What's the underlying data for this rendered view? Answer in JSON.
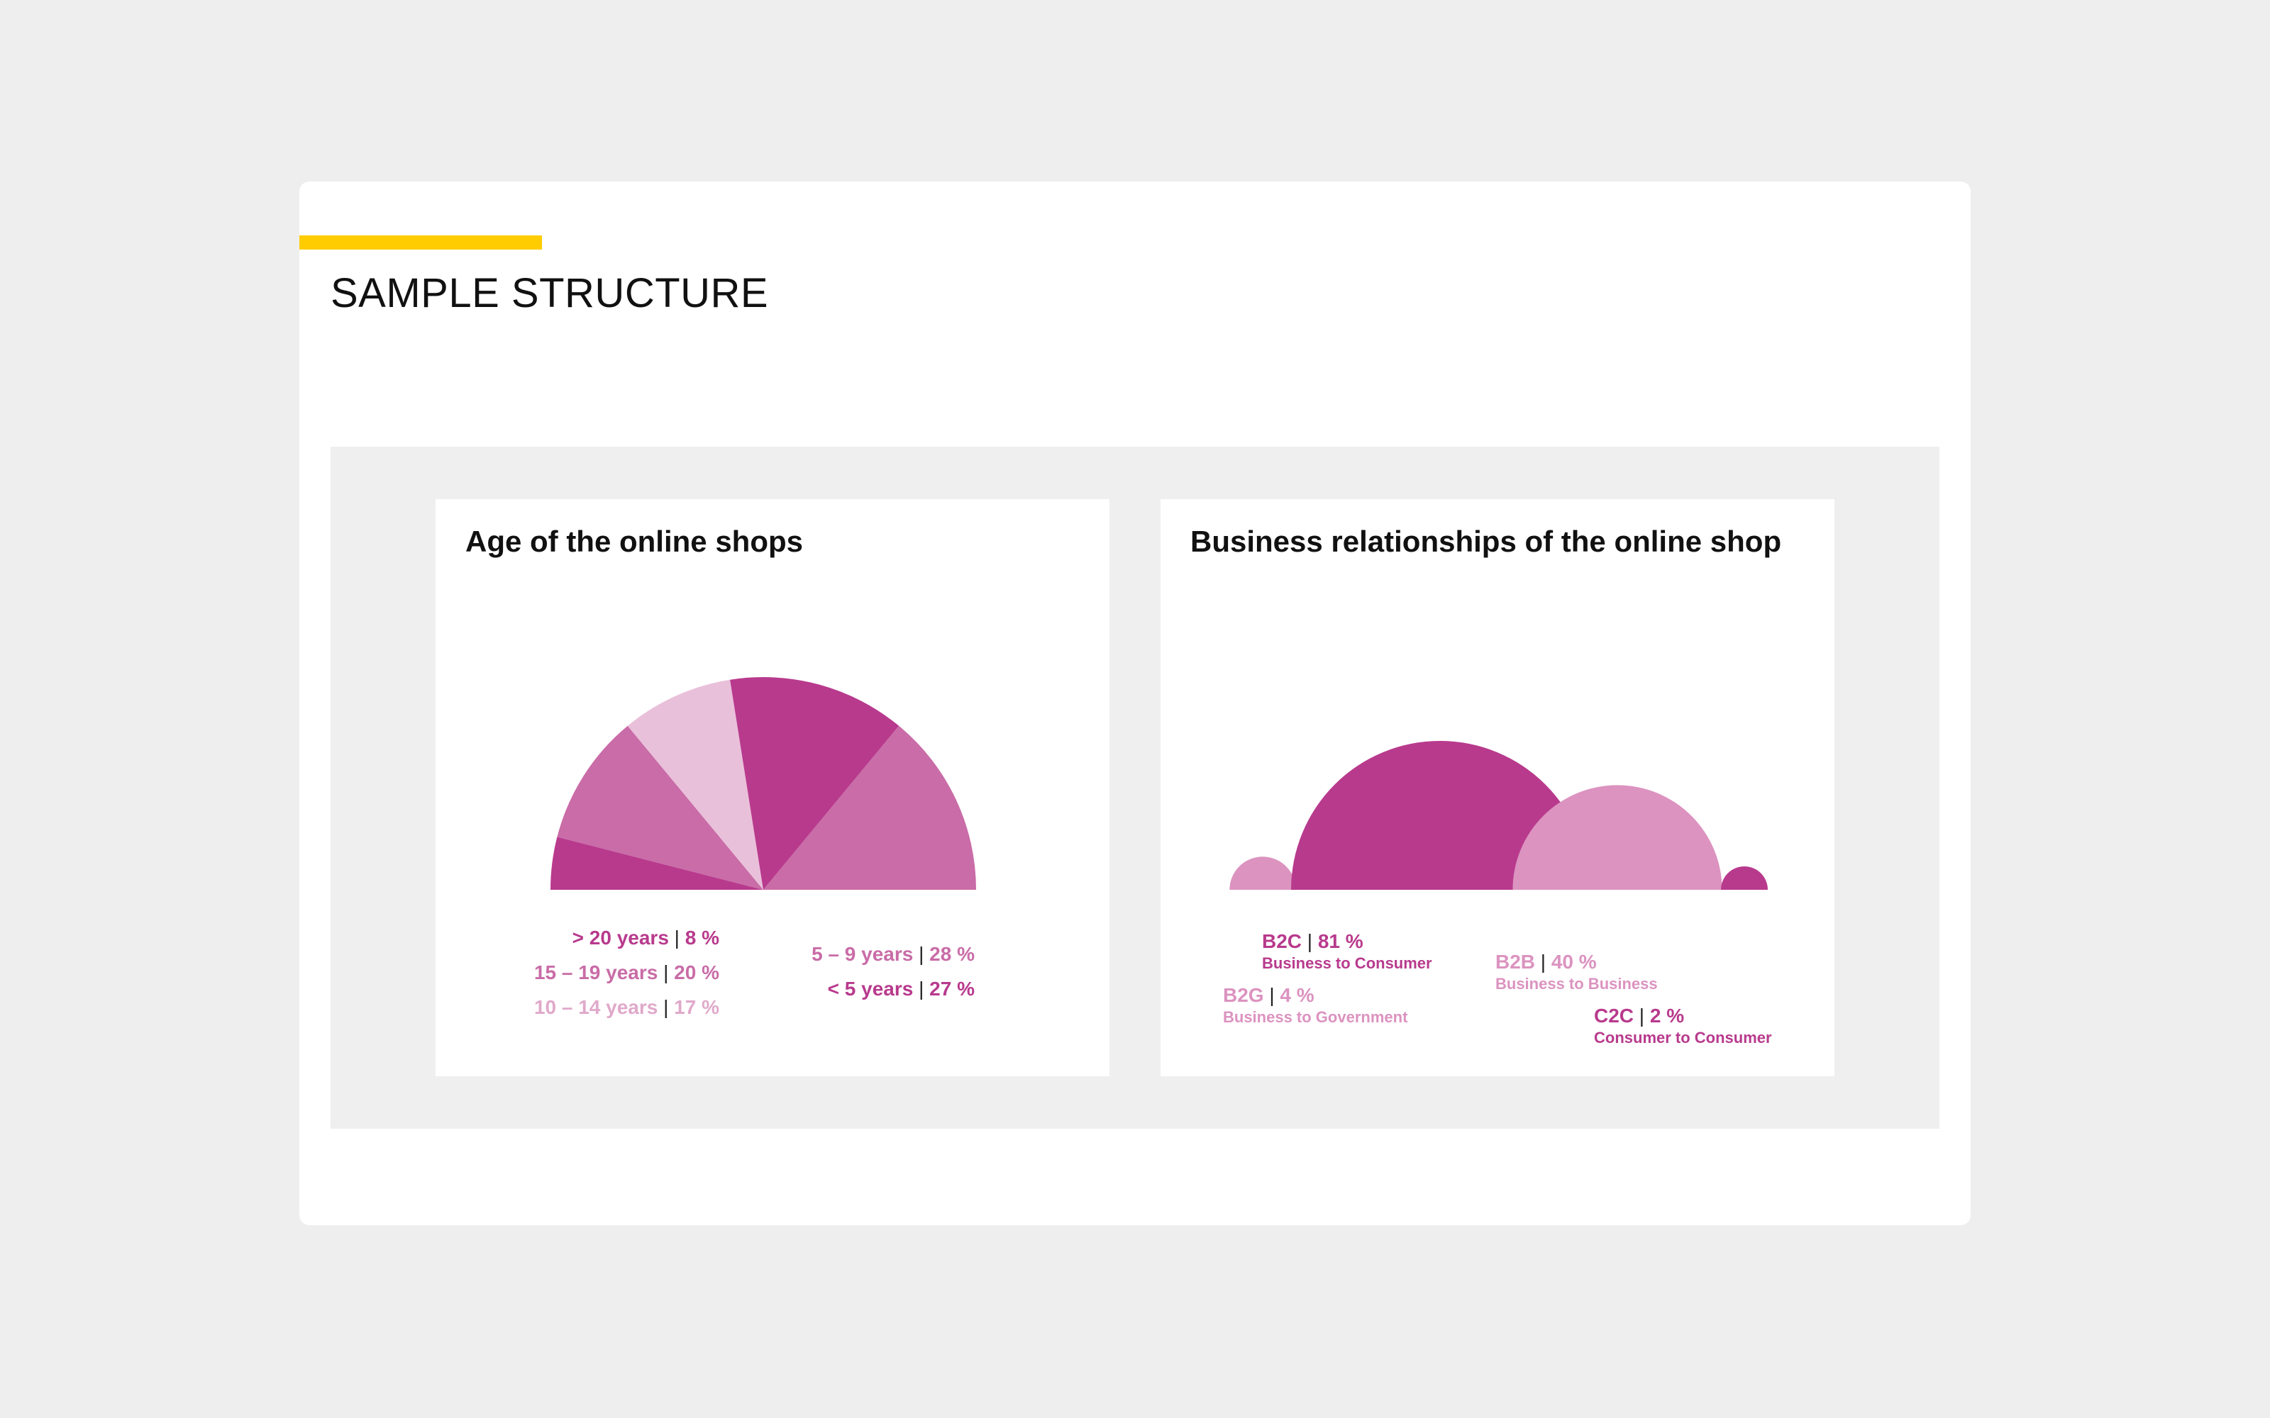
{
  "page": {
    "title": "SAMPLE STRUCTURE",
    "accent_color": "#ffcc00"
  },
  "chart_data": [
    {
      "type": "pie",
      "variant": "half-pie",
      "title": "Age of the online shops",
      "slices": [
        {
          "label": "> 20 years",
          "value_label": "8 %",
          "value": 8,
          "color": "#b83a8d"
        },
        {
          "label": "15 – 19 years",
          "value_label": "20 %",
          "value": 20,
          "color": "#c96ca7"
        },
        {
          "label": "10 – 14 years",
          "value_label": "17 %",
          "value": 17,
          "color": "#e9c0da"
        },
        {
          "label": "< 5 years",
          "value_label": "27 %",
          "value": 27,
          "color": "#b83a8d"
        },
        {
          "label": "5 – 9 years",
          "value_label": "28 %",
          "value": 28,
          "color": "#c96ca7"
        }
      ],
      "legend_text_colors": [
        "#b83a8d",
        "#c96ca7",
        "#e0a9ca",
        "#b83a8d",
        "#c96ca7"
      ]
    },
    {
      "type": "bubble",
      "variant": "half-circles",
      "title": "Business relationships of the online shop",
      "items": [
        {
          "code": "B2G",
          "value_label": "4 %",
          "value": 4,
          "description": "Business to Government",
          "color": "#dc93c0"
        },
        {
          "code": "B2C",
          "value_label": "81 %",
          "value": 81,
          "description": "Business to Consumer",
          "color": "#b83a8d"
        },
        {
          "code": "B2B",
          "value_label": "40 %",
          "value": 40,
          "description": "Business to Business",
          "color": "#dc93c0"
        },
        {
          "code": "C2C",
          "value_label": "2 %",
          "value": 2,
          "description": "Consumer to Consumer",
          "color": "#b83a8d"
        }
      ]
    }
  ]
}
